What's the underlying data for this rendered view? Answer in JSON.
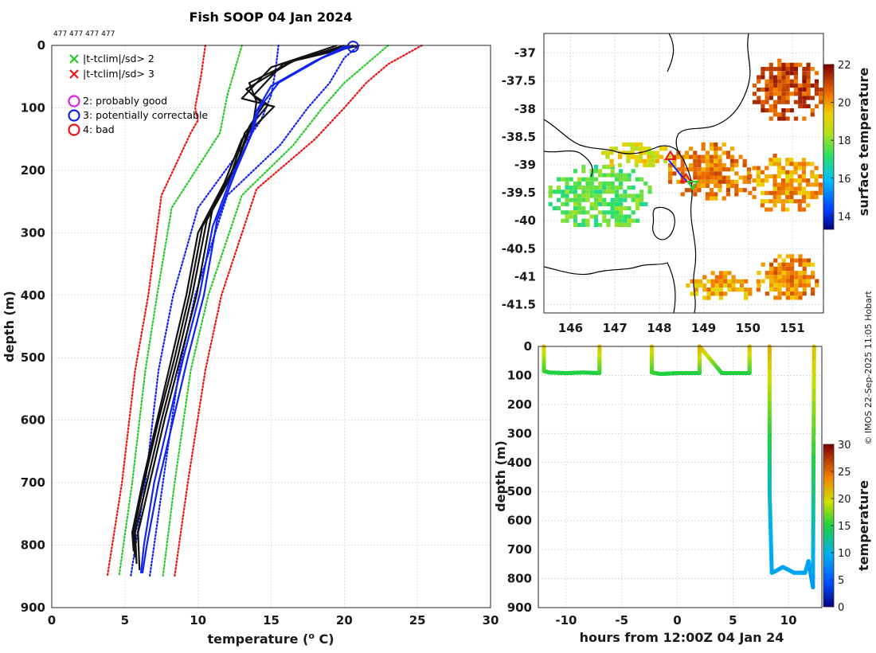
{
  "header": {
    "title": "Fish SOOP 04 Jan 2024",
    "id_text": "477 477 477 477"
  },
  "credit": "© IMOS 22-Sep-2025 11:05 Hobart",
  "legend": {
    "flag_sd2": "|t-tclim|/sd> 2",
    "flag_sd3": "|t-tclim|/sd> 3",
    "qc2": "2: probably good",
    "qc3": "3: potentially correctable",
    "qc4": "4: bad",
    "colors": {
      "sd2": "#22cc22",
      "sd3": "#ee1111",
      "qc2": "#dd22dd",
      "qc3": "#1122ee",
      "qc4": "#ee1111"
    }
  },
  "chart_data": [
    {
      "type": "line",
      "name": "temperature-profile",
      "xlabel": "temperature (° C)",
      "xlabel_pre": "temperature (",
      "xlabel_sup": "o",
      "xlabel_post": " C)",
      "ylabel": "depth (m)",
      "xlim": [
        0,
        30
      ],
      "ylim": [
        900,
        0
      ],
      "xticks": [
        "0",
        "5",
        "10",
        "15",
        "20",
        "25",
        "30"
      ],
      "yticks": [
        "0",
        "100",
        "200",
        "300",
        "400",
        "500",
        "600",
        "700",
        "800",
        "900"
      ],
      "climatology": [
        {
          "name": "clim -3sd",
          "color": "#ee1111",
          "style": "dotted",
          "x": [
            10.5,
            10.2,
            9.8,
            10.0,
            9.5,
            7.5,
            6.6,
            5.7,
            4.8,
            3.8
          ],
          "y": [
            0,
            50,
            100,
            120,
            140,
            240,
            400,
            520,
            700,
            850
          ]
        },
        {
          "name": "clim -2sd",
          "color": "#22cc22",
          "style": "dotted",
          "x": [
            13.0,
            12.5,
            12.0,
            11.5,
            10.4,
            8.2,
            7.2,
            6.4,
            5.5,
            4.6
          ],
          "y": [
            0,
            40,
            80,
            140,
            180,
            260,
            400,
            520,
            700,
            850
          ]
        },
        {
          "name": "clim -1sd",
          "color": "#1122ee",
          "style": "dotted",
          "x": [
            15.5,
            15.3,
            15.0,
            14.3,
            12.5,
            10.0,
            8.3,
            7.3,
            6.4,
            5.4
          ],
          "y": [
            0,
            40,
            80,
            120,
            180,
            260,
            400,
            520,
            700,
            850
          ]
        },
        {
          "name": "clim +1sd",
          "color": "#1122ee",
          "style": "dotted",
          "x": [
            21.0,
            20.0,
            19.0,
            17.5,
            15.6,
            12.0,
            9.8,
            8.7,
            7.6,
            6.7
          ],
          "y": [
            0,
            20,
            60,
            100,
            160,
            240,
            400,
            520,
            700,
            850
          ]
        },
        {
          "name": "clim +2sd",
          "color": "#22cc22",
          "style": "dotted",
          "x": [
            23.0,
            21.5,
            20.0,
            18.5,
            16.5,
            13.0,
            10.7,
            9.5,
            8.4,
            7.6
          ],
          "y": [
            0,
            30,
            60,
            100,
            160,
            240,
            400,
            520,
            700,
            850
          ]
        },
        {
          "name": "clim +3sd",
          "color": "#ee1111",
          "style": "dotted",
          "x": [
            25.3,
            23.0,
            21.5,
            20.0,
            18.0,
            14.0,
            11.6,
            10.5,
            9.3,
            8.4
          ],
          "y": [
            0,
            30,
            60,
            100,
            150,
            230,
            400,
            520,
            700,
            850
          ]
        }
      ],
      "profiles": [
        {
          "name": "profile-1",
          "color": "#111111",
          "x": [
            20.6,
            17.0,
            13.5,
            14.0,
            13.8,
            12.8,
            11.0,
            9.9,
            8.8,
            7.7,
            6.7,
            5.9,
            6.0
          ],
          "y": [
            0,
            20,
            60,
            90,
            120,
            180,
            260,
            400,
            500,
            600,
            700,
            780,
            840
          ]
        },
        {
          "name": "profile-2",
          "color": "#111111",
          "x": [
            21.0,
            16.5,
            13.3,
            14.5,
            13.5,
            12.5,
            10.6,
            9.6,
            8.6,
            7.5,
            6.5,
            5.7,
            5.8
          ],
          "y": [
            0,
            25,
            70,
            95,
            130,
            200,
            280,
            400,
            500,
            600,
            700,
            780,
            830
          ]
        },
        {
          "name": "profile-3",
          "color": "#111111",
          "x": [
            20.0,
            15.8,
            13.8,
            14.8,
            13.2,
            12.2,
            10.3,
            9.4,
            8.4,
            7.3,
            6.3,
            5.6,
            5.7
          ],
          "y": [
            0,
            30,
            80,
            95,
            140,
            210,
            290,
            400,
            500,
            600,
            700,
            780,
            820
          ]
        },
        {
          "name": "profile-4",
          "color": "#111111",
          "x": [
            19.5,
            15.0,
            13.0,
            15.2,
            13.0,
            11.8,
            10.0,
            9.2,
            8.2,
            7.2,
            6.2,
            5.5,
            5.6
          ],
          "y": [
            0,
            35,
            85,
            98,
            150,
            220,
            300,
            400,
            500,
            600,
            700,
            780,
            810
          ]
        },
        {
          "name": "profile-5",
          "color": "#1122ee",
          "x": [
            20.6,
            18.5,
            15.5,
            14.2,
            13.7,
            12.6,
            11.3,
            10.4,
            9.3,
            8.3,
            7.3,
            6.5,
            6.2
          ],
          "y": [
            0,
            20,
            60,
            100,
            140,
            200,
            280,
            400,
            500,
            600,
            700,
            800,
            845
          ]
        },
        {
          "name": "profile-6",
          "color": "#1122ee",
          "x": [
            20.2,
            18.0,
            15.0,
            14.0,
            13.5,
            12.3,
            11.0,
            10.1,
            9.0,
            8.0,
            7.0,
            6.3,
            6.1
          ],
          "y": [
            0,
            25,
            65,
            105,
            150,
            210,
            290,
            400,
            500,
            600,
            700,
            800,
            845
          ]
        }
      ],
      "qc_markers": [
        {
          "flag": "3",
          "x": 20.6,
          "y": 2
        }
      ]
    },
    {
      "type": "heatmap",
      "name": "surface-temperature-map",
      "xlim": [
        145.4,
        151.7
      ],
      "ylim": [
        -41.65,
        -36.65
      ],
      "xticks": [
        146,
        147,
        148,
        149,
        150,
        151
      ],
      "yticks": [
        -37,
        -37.5,
        -38,
        -38.5,
        -39,
        -39.5,
        -40,
        -40.5,
        -41,
        -41.5
      ],
      "xticklabels": [
        "146",
        "147",
        "148",
        "149",
        "150",
        "151"
      ],
      "yticklabels": [
        "-37",
        "-37.5",
        "-38",
        "-38.5",
        "-39",
        "-39.5",
        "-40",
        "-40.5",
        "-41",
        "-41.5"
      ],
      "colorbar_label": "surface temperature",
      "colorbar_range": [
        13.3,
        22
      ],
      "colorbar_ticks": [
        "14",
        "16",
        "18",
        "20",
        "22"
      ],
      "sst_patches": [
        {
          "lon": [
            150.1,
            151.6
          ],
          "lat": [
            -38.2,
            -37.1
          ],
          "value": 21.0
        },
        {
          "lon": [
            148.2,
            150.0
          ],
          "lat": [
            -39.6,
            -38.6
          ],
          "value": 20.3
        },
        {
          "lon": [
            150.0,
            151.6
          ],
          "lat": [
            -39.8,
            -38.8
          ],
          "value": 20.0
        },
        {
          "lon": [
            150.2,
            151.6
          ],
          "lat": [
            -41.4,
            -40.6
          ],
          "value": 20.2
        },
        {
          "lon": [
            148.6,
            150.2
          ],
          "lat": [
            -41.4,
            -40.9
          ],
          "value": 19.8
        },
        {
          "lon": [
            145.5,
            147.8
          ],
          "lat": [
            -40.1,
            -39.0
          ],
          "value": 17.5
        },
        {
          "lon": [
            146.6,
            148.2
          ],
          "lat": [
            -39.0,
            -38.6
          ],
          "value": 19.0
        }
      ],
      "track": {
        "lon": [
          148.2,
          148.5,
          148.7
        ],
        "lat": [
          -38.9,
          -39.2,
          -39.35
        ],
        "color": "#1122ee"
      },
      "track_markers": [
        {
          "symbol": "triangle",
          "lon": 148.25,
          "lat": -38.85,
          "color": "#ee1111"
        },
        {
          "symbol": "triangle",
          "lon": 148.6,
          "lat": -39.25,
          "color": "#ee1111"
        },
        {
          "symbol": "triangle-down",
          "lon": 148.75,
          "lat": -39.35,
          "color": "#22cc22"
        }
      ]
    },
    {
      "type": "scatter",
      "name": "depth-time-section",
      "xlabel": "hours from 12:00Z 04 Jan 24",
      "ylabel": "depth (m)",
      "xlim": [
        -12.5,
        13
      ],
      "ylim": [
        900,
        0
      ],
      "xticks": [
        -10,
        -5,
        0,
        5,
        10
      ],
      "xticklabels": [
        "-10",
        "-5",
        "0",
        "5",
        "10"
      ],
      "yticks": [
        "0",
        "100",
        "200",
        "300",
        "400",
        "500",
        "600",
        "700",
        "800",
        "900"
      ],
      "colorbar_label": "temperature",
      "colorbar_range": [
        0,
        30
      ],
      "colorbar_ticks": [
        "0",
        "5",
        "10",
        "15",
        "20",
        "25",
        "30"
      ],
      "segments": [
        {
          "t": [
            -12.0,
            -12.0,
            -11.5,
            -10.0,
            -8.5,
            -7.0,
            -7.0
          ],
          "depth": [
            0,
            85,
            90,
            92,
            90,
            92,
            0
          ],
          "temp": [
            21,
            16,
            15,
            15,
            15,
            15,
            21
          ]
        },
        {
          "t": [
            -2.3,
            -2.3,
            -1.5,
            0.0,
            2.0,
            2.0,
            4.0,
            6.5,
            6.5
          ],
          "depth": [
            0,
            90,
            95,
            92,
            92,
            0,
            92,
            92,
            0
          ],
          "temp": [
            21,
            16,
            15,
            15,
            15,
            22,
            15,
            15,
            21
          ]
        },
        {
          "t": [
            8.3,
            8.3,
            8.5,
            8.8,
            9.5,
            10.5,
            11.5,
            11.8,
            12.2,
            12.3
          ],
          "depth": [
            0,
            500,
            780,
            775,
            760,
            780,
            780,
            740,
            830,
            0
          ],
          "temp": [
            22,
            11,
            9,
            9,
            9,
            9,
            9,
            9,
            8,
            21
          ]
        }
      ]
    }
  ]
}
